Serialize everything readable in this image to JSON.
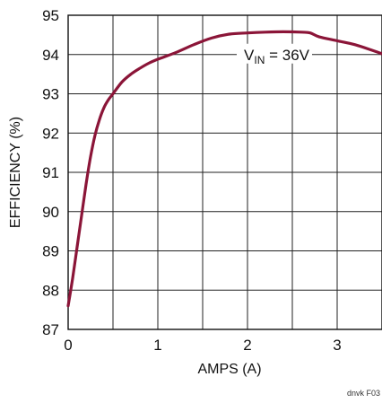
{
  "chart_data": {
    "type": "line",
    "title": "",
    "xlabel": "AMPS (A)",
    "ylabel": "EFFICIENCY (%)",
    "xlim": [
      0,
      3.5
    ],
    "ylim": [
      87,
      95
    ],
    "x_ticks": [
      "0",
      "1",
      "2",
      "3"
    ],
    "y_ticks": [
      "87",
      "88",
      "89",
      "90",
      "91",
      "92",
      "93",
      "94",
      "95"
    ],
    "grid": true,
    "series": [
      {
        "name": "",
        "color": "#8b1538",
        "x": [
          0.0,
          0.05,
          0.1,
          0.15,
          0.2,
          0.25,
          0.3,
          0.35,
          0.4,
          0.45,
          0.5,
          0.6,
          0.7,
          0.8,
          0.9,
          1.0,
          1.2,
          1.4,
          1.6,
          1.8,
          2.0,
          2.2,
          2.4,
          2.6,
          2.7,
          2.8,
          3.0,
          3.2,
          3.4,
          3.5
        ],
        "y": [
          87.6,
          88.3,
          89.1,
          89.9,
          90.7,
          91.4,
          91.95,
          92.35,
          92.65,
          92.85,
          93.0,
          93.3,
          93.5,
          93.65,
          93.78,
          93.88,
          94.05,
          94.25,
          94.42,
          94.52,
          94.55,
          94.57,
          94.58,
          94.57,
          94.55,
          94.45,
          94.35,
          94.25,
          94.1,
          94.02
        ]
      }
    ],
    "annotations": [
      {
        "label_main": "V",
        "label_sub": "IN",
        "label_rest": " = 36V"
      }
    ],
    "figure_id": "dnvk F03"
  }
}
